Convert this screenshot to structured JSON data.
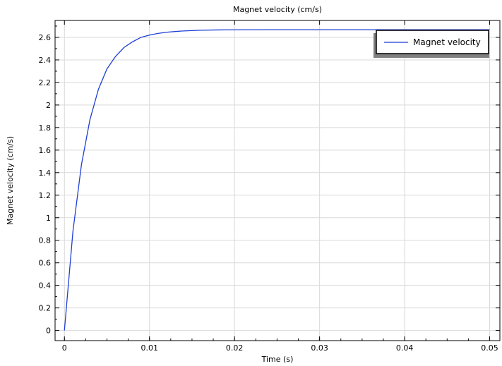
{
  "chart_data": {
    "type": "line",
    "title": "Magnet velocity (cm/s)",
    "xlabel": "Time (s)",
    "ylabel": "Magnet velocity (cm/s)",
    "xlim": [
      -0.0011,
      0.0512
    ],
    "ylim": [
      -0.09,
      2.75
    ],
    "x_ticks": [
      0,
      0.01,
      0.02,
      0.03,
      0.04,
      0.05
    ],
    "x_tick_labels": [
      "0",
      "0.01",
      "0.02",
      "0.03",
      "0.04",
      "0.05"
    ],
    "y_ticks": [
      0,
      0.2,
      0.4,
      0.6,
      0.8,
      1,
      1.2,
      1.4,
      1.6,
      1.8,
      2,
      2.2,
      2.4,
      2.6
    ],
    "y_tick_labels": [
      "0",
      "0.2",
      "0.4",
      "0.6",
      "0.8",
      "1",
      "1.2",
      "1.4",
      "1.6",
      "1.8",
      "2",
      "2.2",
      "2.4",
      "2.6"
    ],
    "grid": true,
    "legend_position": "top-right",
    "series": [
      {
        "name": "Magnet velocity",
        "color": "#1f3fd6",
        "x": [
          0,
          0.001,
          0.002,
          0.003,
          0.004,
          0.005,
          0.006,
          0.007,
          0.008,
          0.009,
          0.01,
          0.011,
          0.012,
          0.013,
          0.014,
          0.015,
          0.016,
          0.018,
          0.02,
          0.025,
          0.03,
          0.035,
          0.04,
          0.045,
          0.05
        ],
        "y": [
          0,
          0.88,
          1.47,
          1.87,
          2.14,
          2.32,
          2.43,
          2.51,
          2.56,
          2.6,
          2.62,
          2.635,
          2.645,
          2.652,
          2.657,
          2.66,
          2.663,
          2.666,
          2.667,
          2.668,
          2.668,
          2.668,
          2.668,
          2.668,
          2.668
        ]
      }
    ]
  }
}
